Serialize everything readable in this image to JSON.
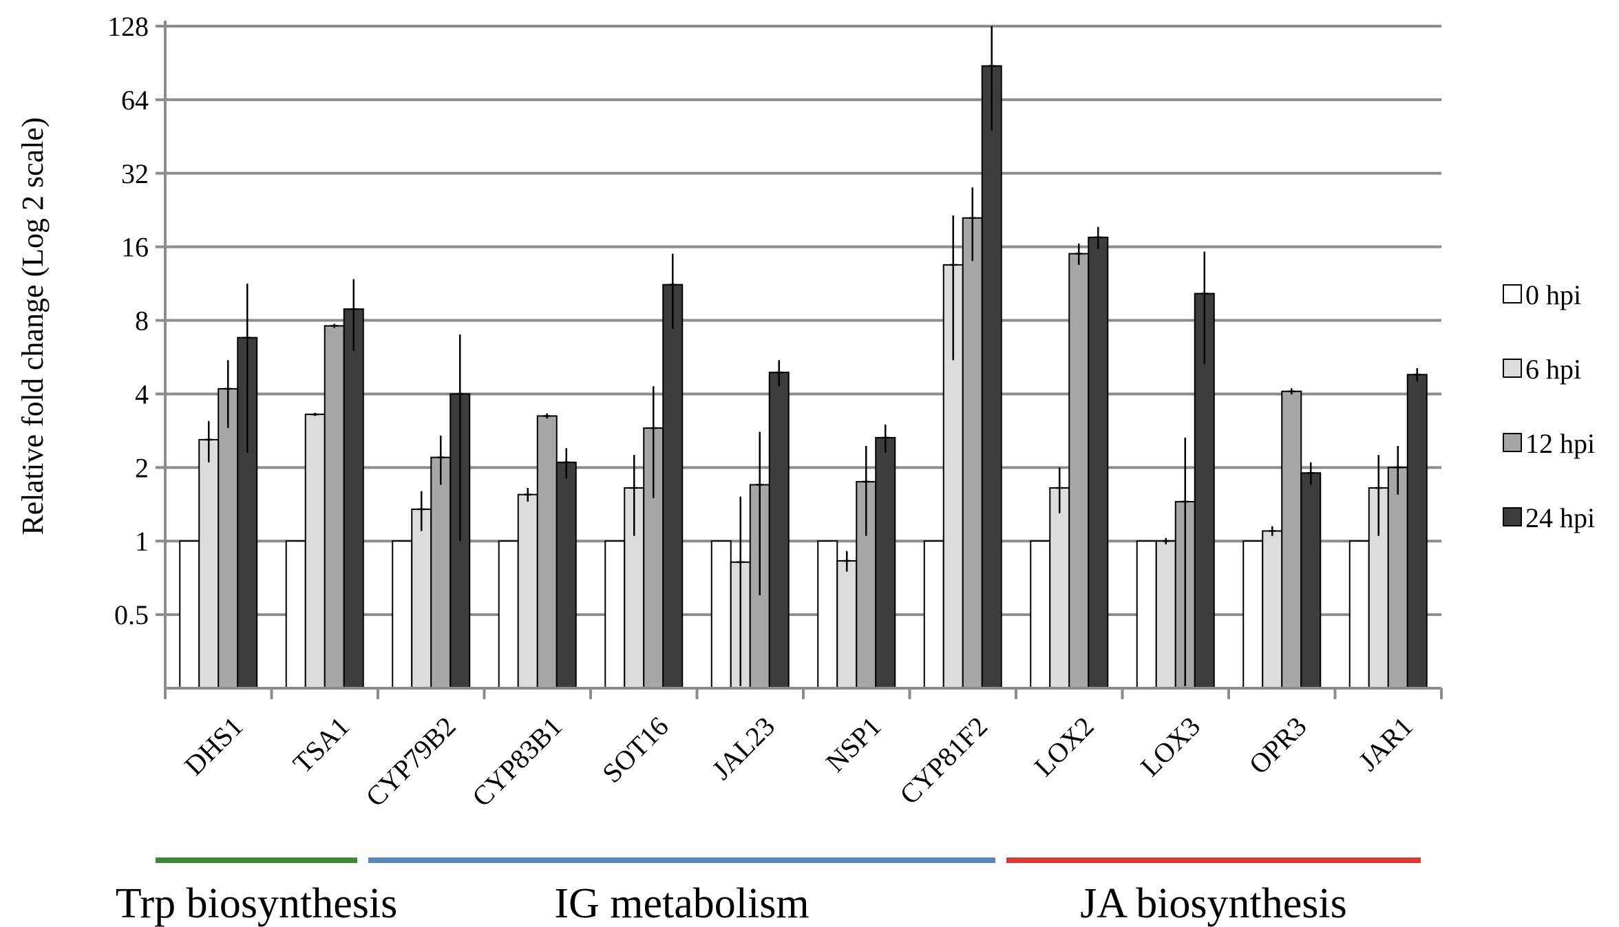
{
  "chart_data": {
    "type": "bar",
    "title": "",
    "xlabel": "",
    "ylabel": "Relative fold change (Log 2 scale)",
    "yscale": "log2",
    "ylim": [
      0.25,
      128
    ],
    "yticks": [
      0.5,
      1,
      2,
      4,
      8,
      16,
      32,
      64,
      128
    ],
    "ytick_labels": [
      "0.5",
      "1",
      "2",
      "4",
      "8",
      "16",
      "32",
      "64",
      "128"
    ],
    "grid": true,
    "legend": "right",
    "categories": [
      "DHS1",
      "TSA1",
      "CYP79B2",
      "CYP83B1",
      "SOT16",
      "JAL23",
      "NSP1",
      "CYP81F2",
      "LOX2",
      "LOX3",
      "OPR3",
      "JAR1"
    ],
    "series": [
      {
        "name": "0 hpi",
        "color": "#ffffff",
        "values": [
          1,
          1,
          1,
          1,
          1,
          1,
          1,
          1,
          1,
          1,
          1,
          1
        ],
        "errors": [
          0,
          0,
          0,
          0,
          0,
          0,
          0,
          0,
          0,
          0,
          0,
          0
        ]
      },
      {
        "name": "6 hpi",
        "color": "#dcdcdc",
        "values": [
          2.6,
          3.3,
          1.35,
          1.55,
          1.65,
          0.82,
          0.83,
          13.5,
          1.65,
          1.0,
          1.1,
          1.65
        ],
        "errors": [
          0.5,
          0.05,
          0.25,
          0.1,
          0.6,
          0.7,
          0.08,
          8,
          0.35,
          0.03,
          0.05,
          0.6
        ]
      },
      {
        "name": "12 hpi",
        "color": "#a6a6a6",
        "values": [
          4.2,
          7.6,
          2.2,
          3.25,
          2.9,
          1.7,
          1.75,
          21,
          15,
          1.45,
          4.1,
          2.0
        ],
        "errors": [
          1.3,
          0.15,
          0.5,
          0.08,
          1.4,
          1.1,
          0.7,
          7,
          1.5,
          1.2,
          0.12,
          0.45
        ]
      },
      {
        "name": "24 hpi",
        "color": "#3d3d3d",
        "values": [
          6.8,
          8.9,
          4.0,
          2.1,
          11.2,
          4.9,
          2.65,
          88,
          17.5,
          10.3,
          1.9,
          4.8
        ],
        "errors": [
          4.5,
          2.9,
          3.0,
          0.3,
          3.8,
          0.6,
          0.35,
          40,
          1.8,
          5.0,
          0.2,
          0.3
        ]
      }
    ],
    "groups": [
      {
        "label": "Trp biosynthesis",
        "color": "#3a8a34",
        "from": "DHS1",
        "to": "TSA1"
      },
      {
        "label": "IG metabolism",
        "color": "#5b84c4",
        "from": "CYP79B2",
        "to": "CYP81F2"
      },
      {
        "label": "JA biosynthesis",
        "color": "#d93a32",
        "from": "LOX2",
        "to": "JAR1"
      }
    ]
  }
}
